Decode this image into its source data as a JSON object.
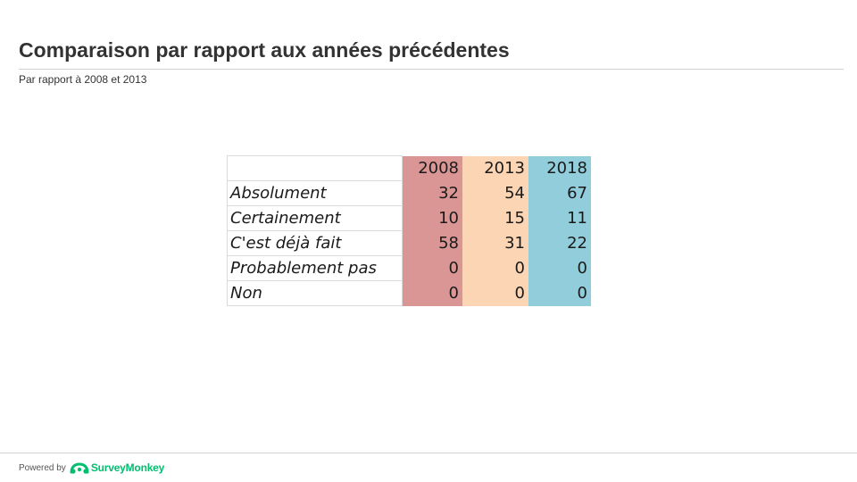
{
  "header": {
    "title": "Comparaison par rapport aux années précédentes",
    "subtitle": "Par rapport  à 2008  et 2013"
  },
  "chart_data": {
    "type": "table",
    "columns": [
      "2008",
      "2013",
      "2018"
    ],
    "column_colors": [
      "#da9694",
      "#fcd5b4",
      "#92cddc"
    ],
    "rows": [
      {
        "label": "Absolument",
        "values": [
          32,
          54,
          67
        ]
      },
      {
        "label": "Certainement",
        "values": [
          10,
          15,
          11
        ]
      },
      {
        "label": "C'est déjà fait",
        "values": [
          58,
          31,
          22
        ]
      },
      {
        "label": "Probablement pas",
        "values": [
          0,
          0,
          0
        ]
      },
      {
        "label": "Non",
        "values": [
          0,
          0,
          0
        ]
      }
    ]
  },
  "footer": {
    "powered_by": "Powered by",
    "brand": "SurveyMonkey",
    "brand_mark": "·",
    "brand_color": "#00bf6f",
    "logo_icon": "surveymonkey-logo-icon"
  }
}
